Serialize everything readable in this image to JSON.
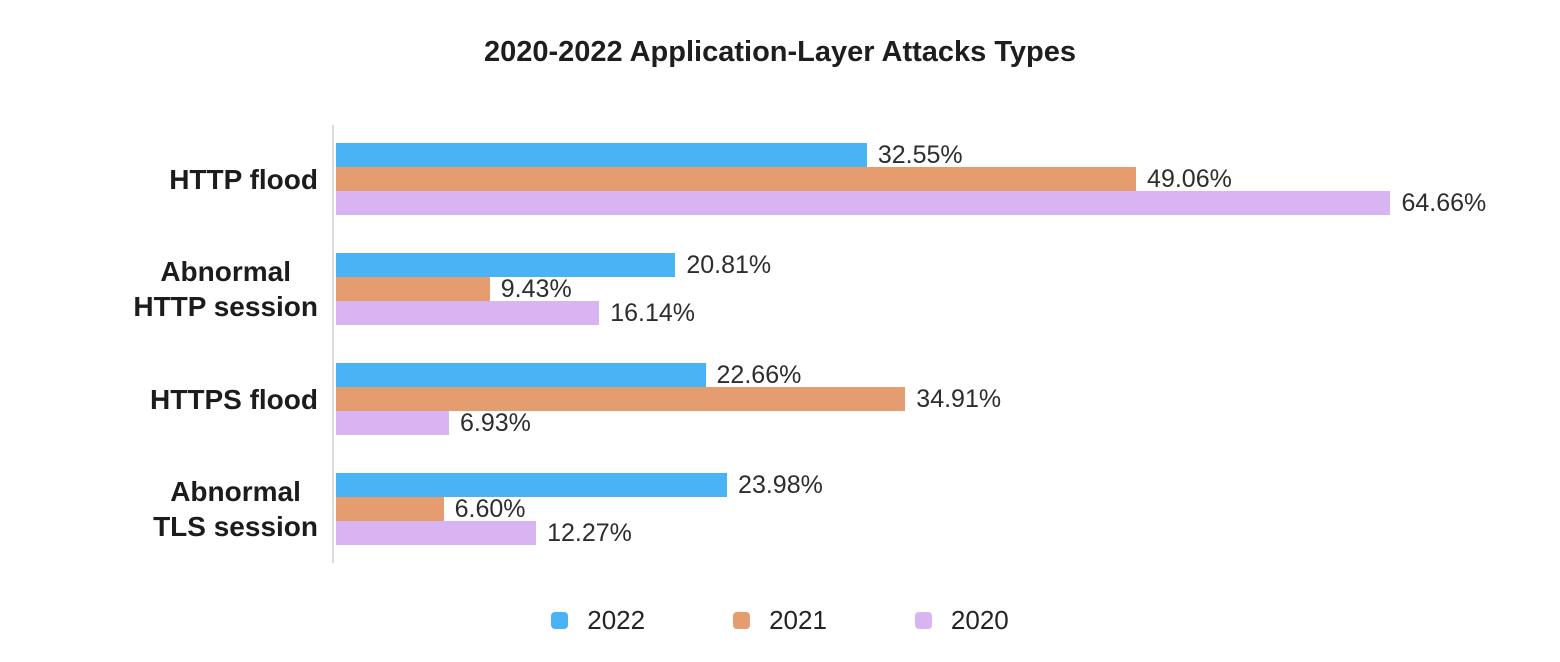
{
  "title": "2020-2022 Application-Layer Attacks Types",
  "chart_data": {
    "type": "bar",
    "orientation": "horizontal",
    "title": "2020-2022 Application-Layer Attacks Types",
    "categories": [
      "HTTP flood",
      "Abnormal HTTP session",
      "HTTPS flood",
      "Abnormal TLS session"
    ],
    "category_lines": [
      [
        "HTTP flood"
      ],
      [
        "Abnormal",
        "HTTP session"
      ],
      [
        "HTTPS flood"
      ],
      [
        "Abnormal",
        "TLS session"
      ]
    ],
    "series": [
      {
        "name": "2022",
        "color": "#49b3f5",
        "values": [
          32.55,
          20.81,
          22.66,
          23.98
        ],
        "labels": [
          "32.55%",
          "20.81%",
          "22.66%",
          "23.98%"
        ]
      },
      {
        "name": "2021",
        "color": "#e59c6f",
        "values": [
          49.06,
          9.43,
          34.91,
          6.6
        ],
        "labels": [
          "49.06%",
          "9.43%",
          "34.91%",
          "6.60%"
        ]
      },
      {
        "name": "2020",
        "color": "#d9b4f3",
        "values": [
          64.66,
          16.14,
          6.93,
          12.27
        ],
        "labels": [
          "64.66%",
          "16.14%",
          "6.93%",
          "12.27%"
        ]
      }
    ],
    "xlim": [
      0,
      65
    ],
    "grid": false,
    "value_labels": "end",
    "legend_position": "bottom",
    "legend_entries": [
      "2022",
      "2021",
      "2020"
    ]
  },
  "colors": {
    "series_2022": "#49b3f5",
    "series_2021": "#e59c6f",
    "series_2020": "#d9b4f3",
    "axis_line": "#dcdcdc",
    "background": "#ffffff",
    "text": "#1e1e1e"
  }
}
